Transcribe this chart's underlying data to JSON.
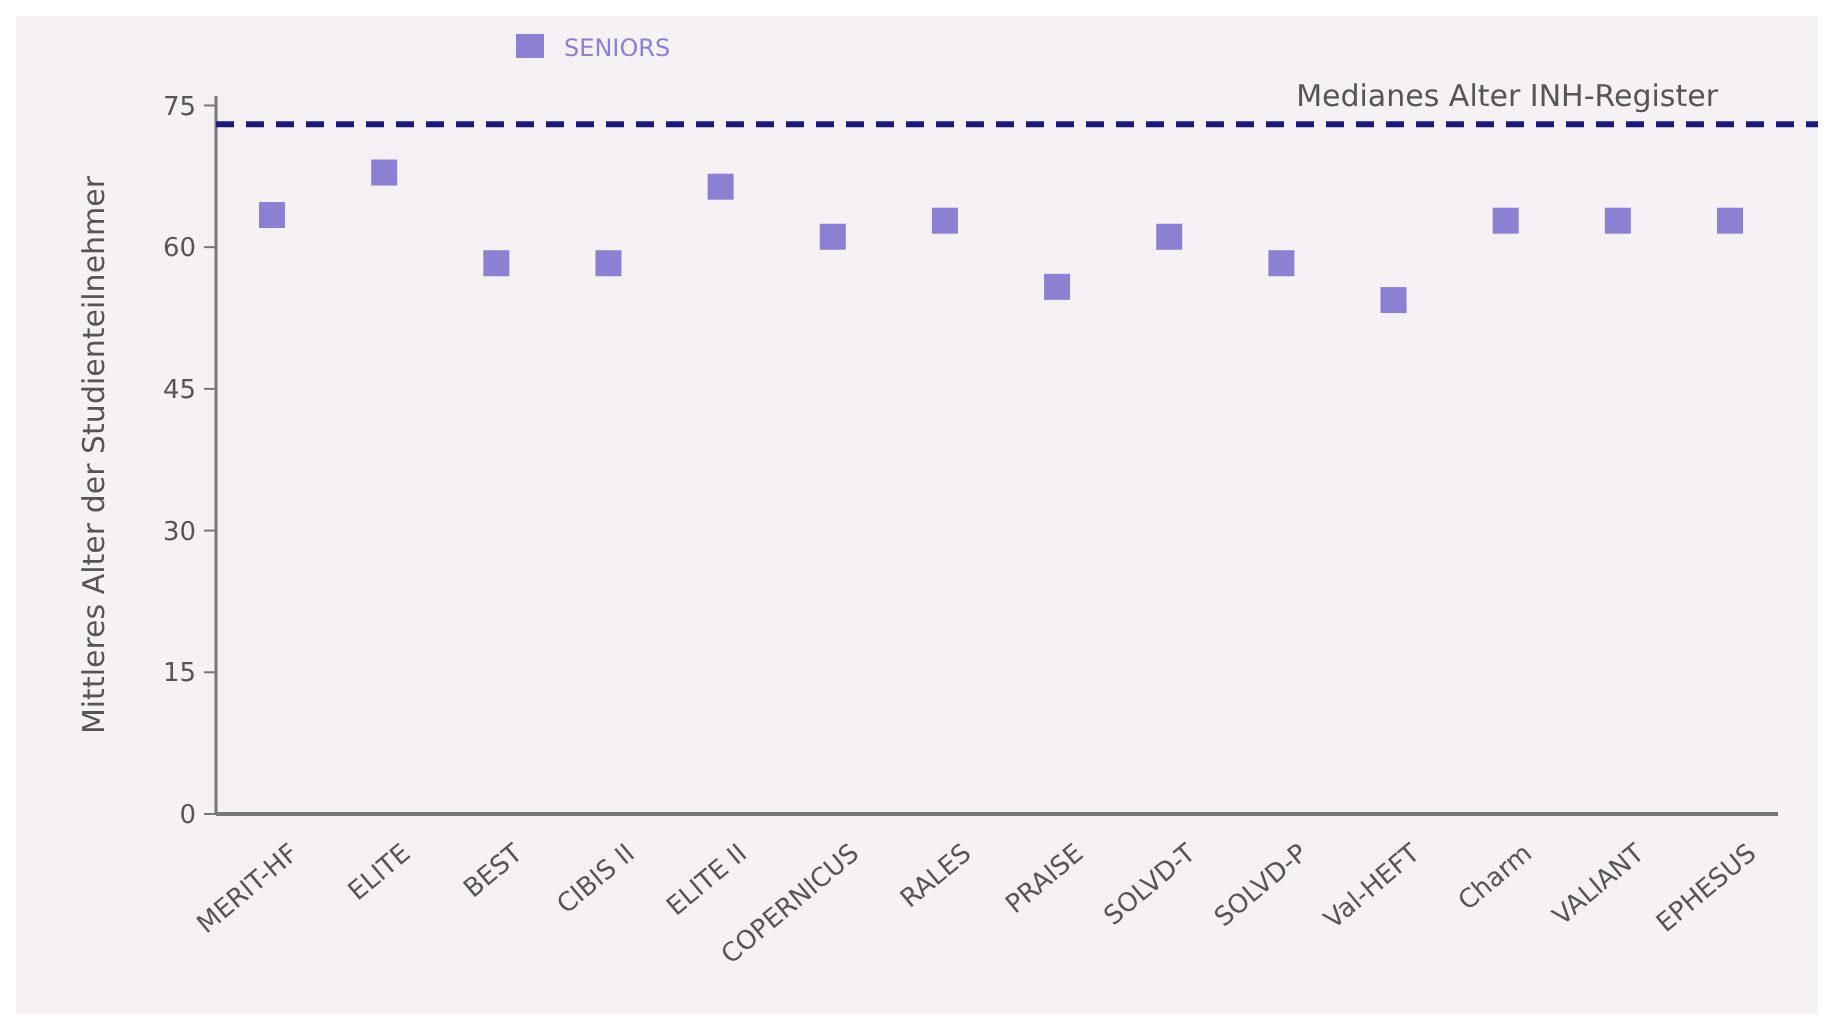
{
  "chart_data": {
    "type": "scatter",
    "ylabel": "Mittleres Alter der Studienteilnehmer",
    "categories": [
      "MERIT-HF",
      "ELITE",
      "BEST",
      "CIBIS II",
      "ELITE II",
      "COPERNICUS",
      "RALES",
      "PRAISE",
      "SOLVD-T",
      "SOLVD-P",
      "Val-HEFT",
      "Charm",
      "VALIANT",
      "EPHESUS"
    ],
    "series": [
      {
        "name": "SENIORS",
        "color": "#8c80d2",
        "values": [
          63.4,
          67.9,
          58.3,
          58.3,
          66.4,
          61.1,
          62.8,
          55.8,
          61.1,
          58.3,
          54.4,
          62.8,
          62.8,
          62.8
        ]
      }
    ],
    "ylim": [
      0,
      76
    ],
    "yticks": [
      0,
      15,
      30,
      45,
      60,
      75
    ],
    "ref_lines": [
      {
        "axis": "y",
        "value": 73,
        "label": "Medianes Alter INH-Register",
        "color": "#1c1c78",
        "line_style": "dashed"
      }
    ],
    "marker": "square",
    "legend": "top",
    "grid": false
  }
}
